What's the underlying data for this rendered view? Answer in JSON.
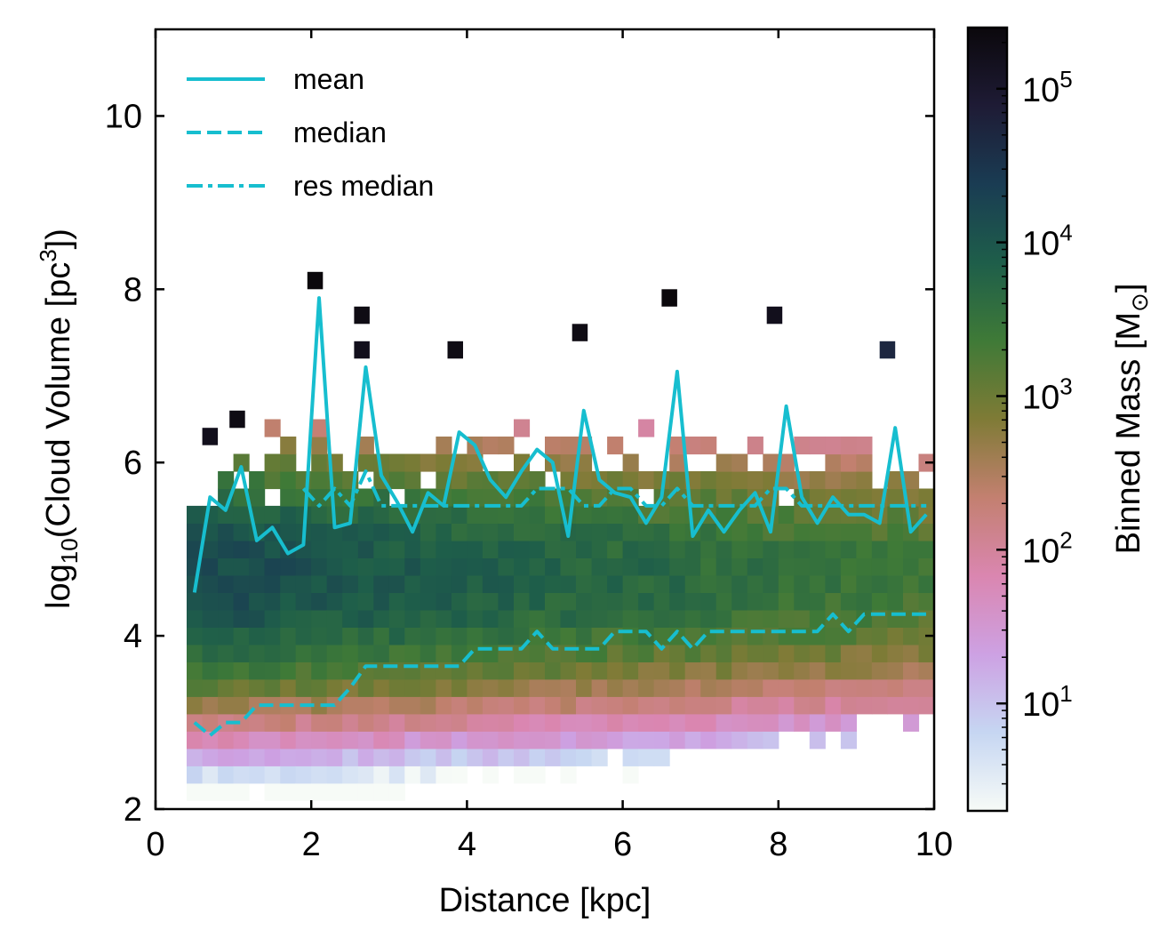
{
  "chart_data": {
    "type": "heatmap",
    "xlabel": "Distance [kpc]",
    "ylabel": {
      "prefix": "log",
      "sub": "10",
      "mid": "(Cloud Volume [pc",
      "sup": "3",
      "suffix": "])"
    },
    "xlim": [
      0,
      10
    ],
    "ylim": [
      2,
      11
    ],
    "x_ticks": [
      "0",
      "2",
      "4",
      "6",
      "8",
      "10"
    ],
    "y_ticks": [
      "2",
      "4",
      "6",
      "8",
      "10"
    ],
    "colorbar": {
      "label": {
        "text": "Binned Mass [M",
        "sub": "⊙",
        "close": "]"
      },
      "scale": "log",
      "range": [
        2,
        250000
      ],
      "ticks": [
        {
          "base": "10",
          "exp": "1",
          "value": 10
        },
        {
          "base": "10",
          "exp": "2",
          "value": 100
        },
        {
          "base": "10",
          "exp": "3",
          "value": 1000
        },
        {
          "base": "10",
          "exp": "4",
          "value": 10000
        },
        {
          "base": "10",
          "exp": "5",
          "value": 100000
        }
      ],
      "colormap": [
        "#f7fbf7",
        "#c6d6f2",
        "#cda1e3",
        "#da86b0",
        "#c38070",
        "#7f7b36",
        "#3f7a37",
        "#1e5e4a",
        "#1a3c53",
        "#1e1b35",
        "#0b080c"
      ]
    },
    "histogram": {
      "x_start": 0.4,
      "x_bin": 0.2,
      "n_x": 48,
      "y_start": 2.1,
      "y_bin": 0.2,
      "n_y": 22,
      "colormap_note": "values approximate, log10 of binned mass"
    },
    "legend": {
      "position": "upper-left",
      "entries": [
        {
          "label": "mean",
          "style": "solid"
        },
        {
          "label": "median",
          "style": "dashed"
        },
        {
          "label": "res median",
          "style": "dashdot"
        }
      ]
    },
    "line_color": "#17becf",
    "series": [
      {
        "name": "mean",
        "style": "solid",
        "x": [
          0.5,
          0.7,
          0.9,
          1.1,
          1.3,
          1.5,
          1.7,
          1.9,
          2.1,
          2.3,
          2.5,
          2.7,
          2.9,
          3.1,
          3.3,
          3.5,
          3.7,
          3.9,
          4.1,
          4.3,
          4.5,
          4.7,
          4.9,
          5.1,
          5.3,
          5.5,
          5.7,
          5.9,
          6.1,
          6.3,
          6.5,
          6.7,
          6.9,
          7.1,
          7.3,
          7.5,
          7.7,
          7.9,
          8.1,
          8.3,
          8.5,
          8.7,
          8.9,
          9.1,
          9.3,
          9.5,
          9.7,
          9.9
        ],
        "y": [
          4.5,
          5.6,
          5.45,
          5.95,
          5.1,
          5.25,
          4.95,
          5.05,
          7.9,
          5.25,
          5.3,
          7.1,
          5.85,
          5.55,
          5.2,
          5.65,
          5.5,
          6.35,
          6.2,
          5.8,
          5.6,
          5.9,
          6.15,
          6.0,
          5.15,
          6.6,
          5.8,
          5.65,
          5.6,
          5.3,
          5.6,
          7.05,
          5.15,
          5.45,
          5.2,
          5.45,
          5.65,
          5.2,
          6.65,
          5.6,
          5.3,
          5.6,
          5.4,
          5.4,
          5.3,
          6.4,
          5.2,
          5.4
        ]
      },
      {
        "name": "median",
        "style": "dashed",
        "x": [
          0.5,
          0.7,
          0.9,
          1.1,
          1.3,
          1.5,
          1.7,
          1.9,
          2.1,
          2.3,
          2.5,
          2.7,
          2.9,
          3.1,
          3.3,
          3.5,
          3.7,
          3.9,
          4.1,
          4.3,
          4.5,
          4.7,
          4.9,
          5.1,
          5.3,
          5.5,
          5.7,
          5.9,
          6.1,
          6.3,
          6.5,
          6.7,
          6.9,
          7.1,
          7.3,
          7.5,
          7.7,
          7.9,
          8.1,
          8.3,
          8.5,
          8.7,
          8.9,
          9.1,
          9.3,
          9.5,
          9.7,
          9.9
        ],
        "y": [
          3.0,
          2.85,
          3.0,
          3.0,
          3.2,
          3.2,
          3.2,
          3.2,
          3.2,
          3.2,
          3.4,
          3.65,
          3.65,
          3.65,
          3.65,
          3.65,
          3.65,
          3.65,
          3.85,
          3.85,
          3.85,
          3.85,
          4.05,
          3.85,
          3.85,
          3.85,
          3.85,
          4.05,
          4.05,
          4.05,
          3.85,
          4.05,
          3.85,
          4.05,
          4.05,
          4.05,
          4.05,
          4.05,
          4.05,
          4.05,
          4.05,
          4.25,
          4.05,
          4.25,
          4.25,
          4.25,
          4.25,
          4.25
        ]
      },
      {
        "name": "res median",
        "style": "dashdot",
        "x": [
          1.9,
          2.1,
          2.3,
          2.5,
          2.7,
          2.9,
          3.1,
          3.3,
          3.5,
          3.7,
          3.9,
          4.1,
          4.3,
          4.5,
          4.7,
          4.9,
          5.1,
          5.3,
          5.5,
          5.7,
          5.9,
          6.1,
          6.3,
          6.5,
          6.7,
          6.9,
          7.1,
          7.3,
          7.5,
          7.7,
          7.9,
          8.1,
          8.3,
          8.5,
          8.7,
          8.9,
          9.1,
          9.3,
          9.5,
          9.7,
          9.9
        ],
        "y": [
          5.7,
          5.5,
          5.7,
          5.5,
          5.9,
          5.5,
          5.5,
          5.5,
          5.5,
          5.5,
          5.5,
          5.5,
          5.5,
          5.5,
          5.5,
          5.7,
          5.7,
          5.7,
          5.5,
          5.5,
          5.7,
          5.7,
          5.5,
          5.5,
          5.7,
          5.5,
          5.5,
          5.5,
          5.5,
          5.5,
          5.7,
          5.7,
          5.5,
          5.5,
          5.5,
          5.5,
          5.5,
          5.5,
          5.5,
          5.5,
          5.5
        ]
      }
    ]
  }
}
